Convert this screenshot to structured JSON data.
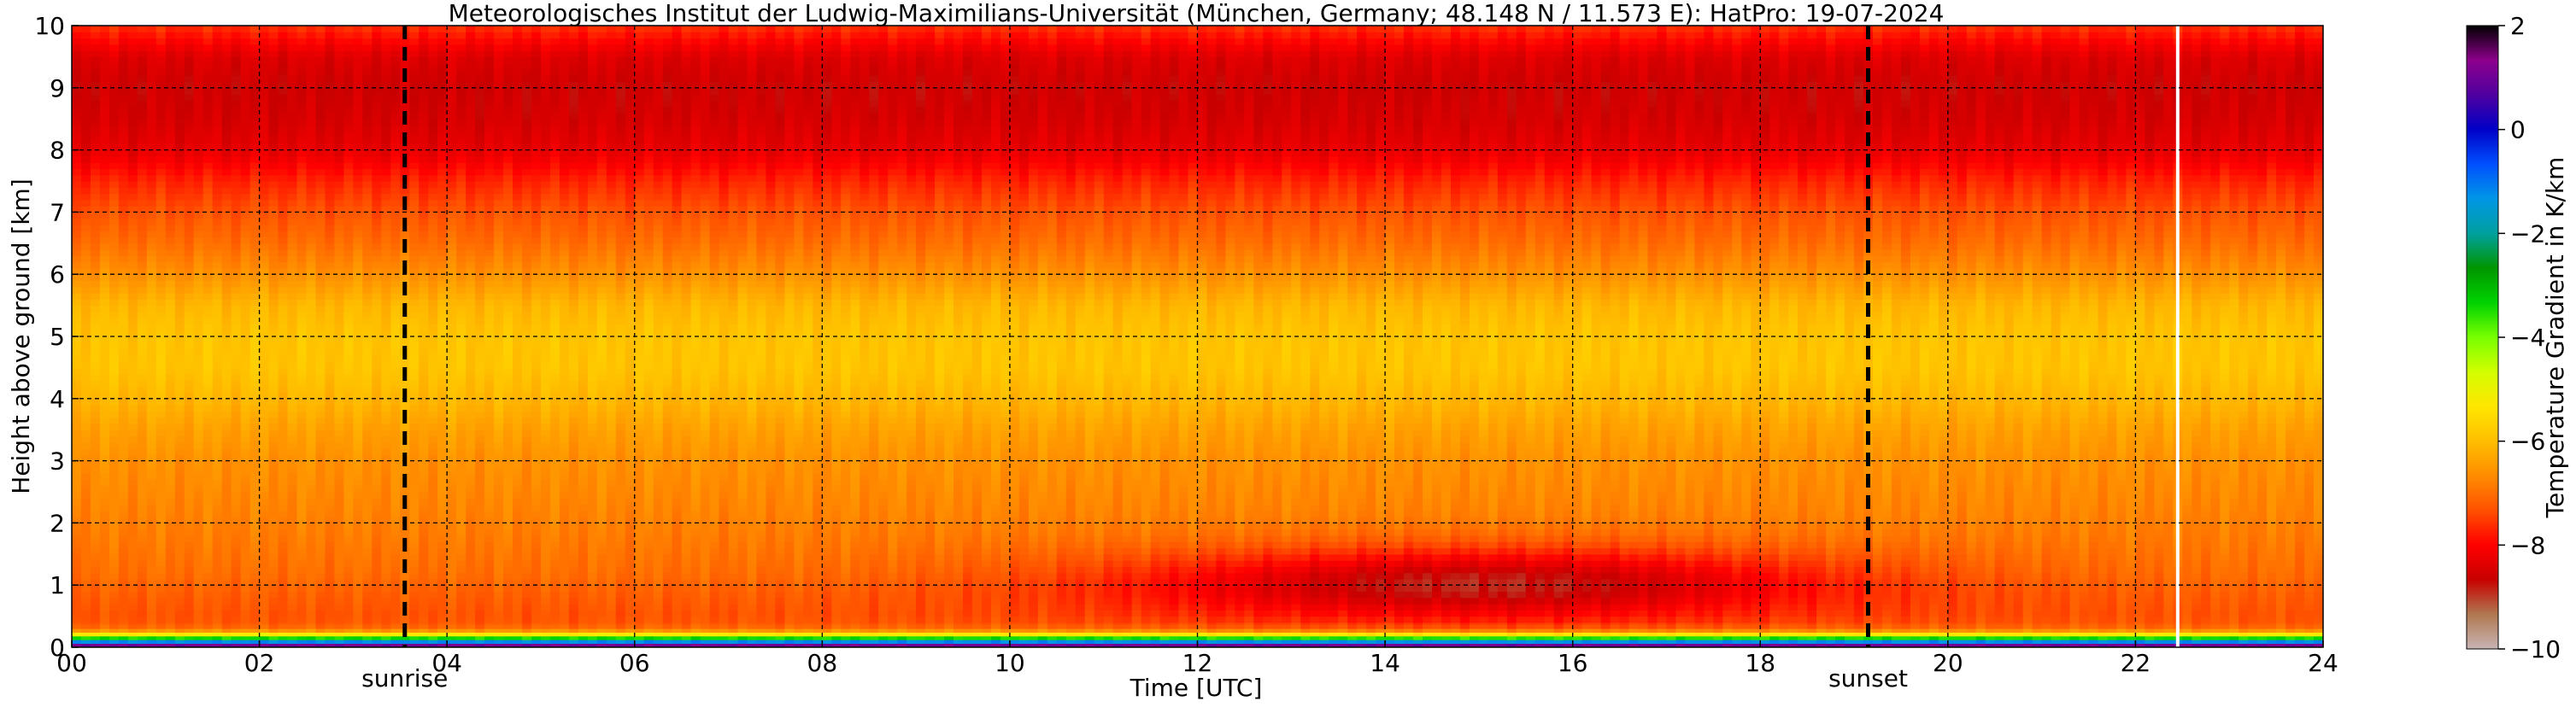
{
  "chart_data": {
    "type": "heatmap",
    "title": "Meteorologisches Institut der Ludwig-Maximilians-Universität (München, Germany; 48.148 N / 11.573 E):    HatPro: 19-07-2024",
    "xlabel": "Time [UTC]",
    "ylabel": "Height above ground [km]",
    "xlim": [
      0,
      24
    ],
    "ylim": [
      0,
      10
    ],
    "x_ticks": [
      "00",
      "02",
      "04",
      "06",
      "08",
      "10",
      "12",
      "14",
      "16",
      "18",
      "20",
      "22",
      "24"
    ],
    "y_ticks": [
      "0",
      "1",
      "2",
      "3",
      "4",
      "5",
      "6",
      "7",
      "8",
      "9",
      "10"
    ],
    "grid": true,
    "markers": [
      {
        "label": "sunrise",
        "x": 3.55
      },
      {
        "label": "sunset",
        "x": 19.15
      }
    ],
    "data_gap_x": 22.45,
    "colorbar": {
      "label": "Temperature Gradient in K/km",
      "range": [
        -10,
        2
      ],
      "ticks": [
        "2",
        "0",
        "−2",
        "−4",
        "−6",
        "−8",
        "−10"
      ],
      "colors": [
        "#c8b4b4",
        "#b07850",
        "#c80000",
        "#ff0000",
        "#ff5000",
        "#ff8c00",
        "#ffbe00",
        "#ffe600",
        "#d2ff00",
        "#78ff00",
        "#00d200",
        "#009600",
        "#00a0a0",
        "#0096e6",
        "#0050ff",
        "#0000c8",
        "#5000a0",
        "#8c008c",
        "#000000"
      ]
    },
    "z_profile": {
      "heights_km": [
        0.0,
        0.05,
        0.12,
        0.2,
        0.28,
        0.35,
        0.5,
        0.8,
        1.2,
        1.6,
        2.0,
        2.5,
        3.0,
        3.5,
        4.0,
        4.5,
        5.0,
        5.5,
        6.0,
        6.5,
        7.0,
        7.5,
        8.0,
        8.5,
        9.0,
        9.5,
        10.0
      ],
      "base_values": [
        2.0,
        0.5,
        -2.5,
        -5.0,
        -6.8,
        -7.2,
        -7.3,
        -7.2,
        -7.0,
        -6.9,
        -6.8,
        -6.7,
        -6.6,
        -6.4,
        -6.1,
        -5.9,
        -5.9,
        -6.1,
        -6.6,
        -7.0,
        -7.3,
        -7.7,
        -8.3,
        -8.5,
        -8.6,
        -8.4,
        -7.6
      ]
    }
  }
}
